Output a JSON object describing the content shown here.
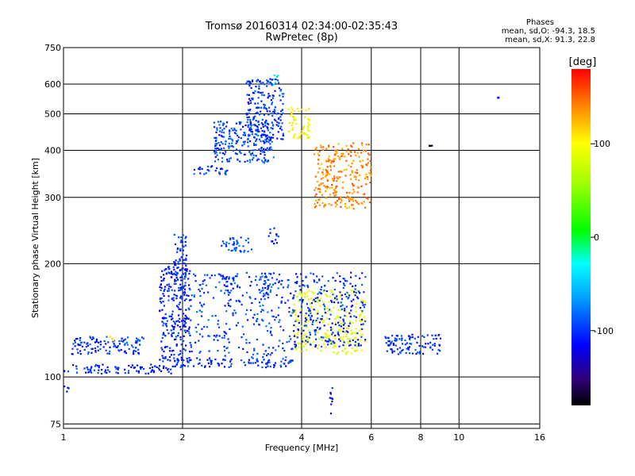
{
  "title": {
    "line1": "Tromsø 20160314 02:34:00-02:35:43",
    "line2": "RwPretec (8p)"
  },
  "phase_info": {
    "heading": "Phases",
    "o_line": "mean, sd,O: -94.3, 18.5",
    "x_line": "mean, sd,X:  91.3, 22.8"
  },
  "colorbar": {
    "label": "[deg]",
    "ticks": [
      "100",
      "0",
      "-100"
    ],
    "range": [
      -180,
      180
    ]
  },
  "chart_data": {
    "type": "scatter",
    "title": "Tromsø 20160314 02:34:00-02:35:43",
    "subtitle": "RwPretec (8p)",
    "xlabel": "Frequency [MHz]",
    "ylabel": "Stationary phase Virtual Height [km]",
    "xscale": "log",
    "yscale": "log",
    "xlim": [
      1,
      16
    ],
    "ylim": [
      73,
      750
    ],
    "xticks": [
      1,
      2,
      4,
      6,
      8,
      10,
      16
    ],
    "yticks": [
      75,
      100,
      200,
      300,
      400,
      500,
      600,
      750
    ],
    "grid": true,
    "color_by": "phase [deg]",
    "clusters": [
      {
        "x": [
          1.0,
          1.03
        ],
        "y": [
          90,
          95
        ],
        "phase": -120
      },
      {
        "x": [
          1.0,
          1.9
        ],
        "y": [
          102,
          108
        ],
        "phase": -105
      },
      {
        "x": [
          1.9,
          3.8
        ],
        "y": [
          106,
          112
        ],
        "phase": -100
      },
      {
        "x": [
          1.05,
          1.6
        ],
        "y": [
          115,
          128
        ],
        "phase": -100
      },
      {
        "x": [
          1.3,
          1.35
        ],
        "y": [
          125,
          130
        ],
        "phase": 100
      },
      {
        "x": [
          1.75,
          2.1
        ],
        "y": [
          110,
          200
        ],
        "phase": -105
      },
      {
        "x": [
          1.9,
          2.05
        ],
        "y": [
          170,
          240
        ],
        "phase": -100
      },
      {
        "x": [
          2.1,
          3.8
        ],
        "y": [
          112,
          190
        ],
        "phase": -95
      },
      {
        "x": [
          2.5,
          2.7
        ],
        "y": [
          165,
          185
        ],
        "phase": -100
      },
      {
        "x": [
          3.1,
          3.3
        ],
        "y": [
          160,
          185
        ],
        "phase": -100
      },
      {
        "x": [
          2.5,
          3.0
        ],
        "y": [
          215,
          235
        ],
        "phase": -90
      },
      {
        "x": [
          3.3,
          3.5
        ],
        "y": [
          225,
          250
        ],
        "phase": -100
      },
      {
        "x": [
          3.8,
          5.8
        ],
        "y": [
          115,
          170
        ],
        "phase": 90
      },
      {
        "x": [
          3.8,
          5.8
        ],
        "y": [
          120,
          190
        ],
        "phase": -100
      },
      {
        "x": [
          2.1,
          2.6
        ],
        "y": [
          345,
          365
        ],
        "phase": -100
      },
      {
        "x": [
          2.4,
          3.4
        ],
        "y": [
          370,
          480
        ],
        "phase": -95
      },
      {
        "x": [
          2.9,
          3.6
        ],
        "y": [
          420,
          620
        ],
        "phase": -100
      },
      {
        "x": [
          3.4,
          3.5
        ],
        "y": [
          590,
          640
        ],
        "phase": -40
      },
      {
        "x": [
          3.7,
          4.2
        ],
        "y": [
          430,
          520
        ],
        "phase": 100
      },
      {
        "x": [
          4.3,
          6.0
        ],
        "y": [
          280,
          420
        ],
        "phase": 140
      },
      {
        "x": [
          8.4,
          8.6
        ],
        "y": [
          410,
          415
        ],
        "phase": -180
      },
      {
        "x": [
          12.5,
          12.6
        ],
        "y": [
          550,
          555
        ],
        "phase": -120
      },
      {
        "x": [
          4.7,
          4.8
        ],
        "y": [
          78,
          94
        ],
        "phase": -120
      },
      {
        "x": [
          6.5,
          9.0
        ],
        "y": [
          115,
          130
        ],
        "phase": -100
      }
    ]
  }
}
